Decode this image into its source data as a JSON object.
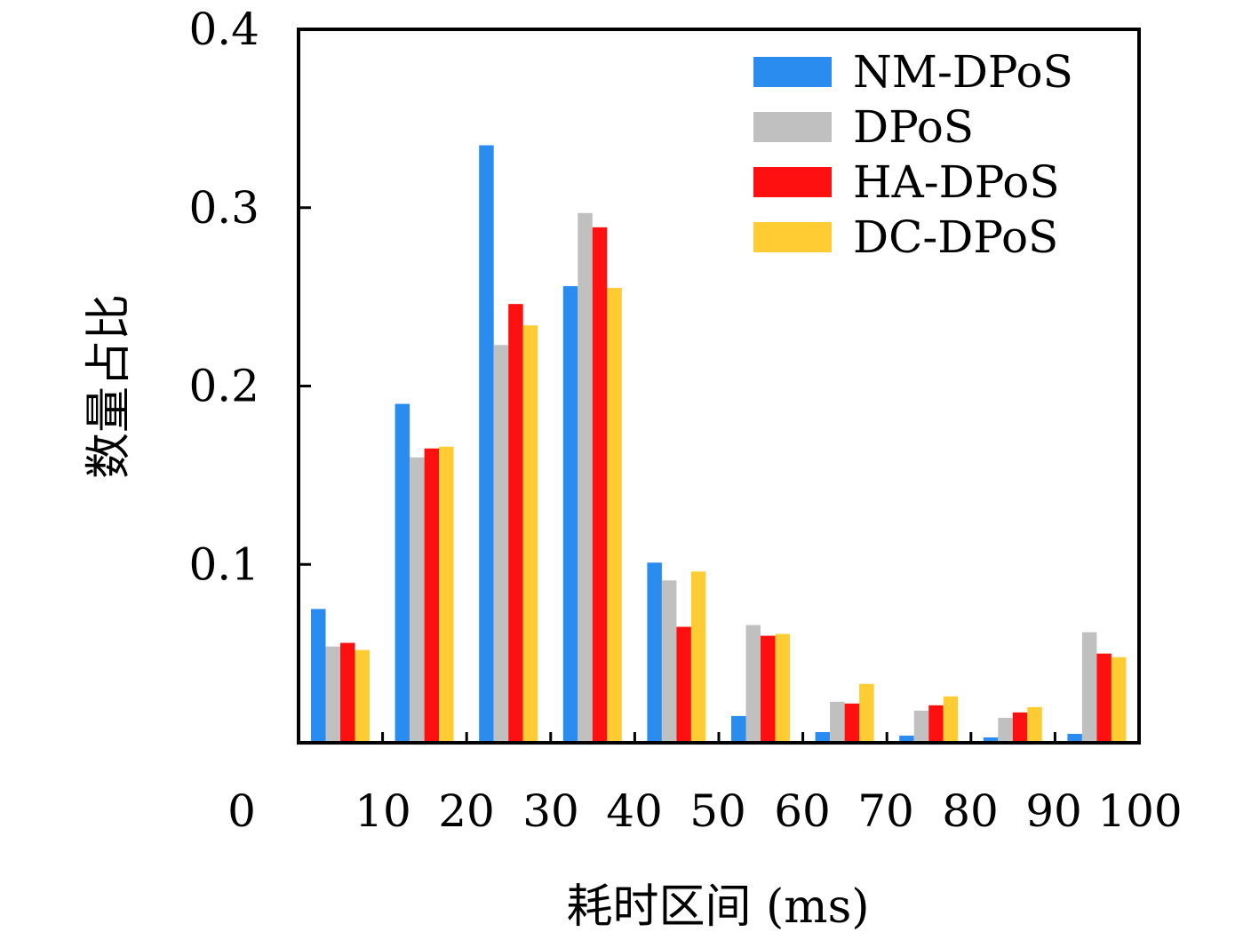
{
  "chart_data": {
    "type": "bar",
    "xlabel": "耗时区间 (ms)",
    "ylabel": "数量占比",
    "x_ticks": [
      "0",
      "10",
      "20",
      "30",
      "40",
      "50",
      "60",
      "70",
      "80",
      "90",
      "100"
    ],
    "y_ticks": [
      "0.1",
      "0.2",
      "0.3",
      "0.4"
    ],
    "ylim": [
      0,
      0.4
    ],
    "xlim": [
      0,
      100
    ],
    "categories": [
      "0-10",
      "10-20",
      "20-30",
      "30-40",
      "40-50",
      "50-60",
      "60-70",
      "70-80",
      "80-90",
      "90-100"
    ],
    "series": [
      {
        "name": "NM-DPoS",
        "color": "#2b8cf0",
        "values": [
          0.075,
          0.19,
          0.335,
          0.256,
          0.101,
          0.015,
          0.006,
          0.004,
          0.003,
          0.005
        ]
      },
      {
        "name": "DPoS",
        "color": "#c0c0c0",
        "values": [
          0.054,
          0.16,
          0.223,
          0.297,
          0.091,
          0.066,
          0.023,
          0.018,
          0.014,
          0.062
        ]
      },
      {
        "name": "HA-DPoS",
        "color": "#ff1010",
        "values": [
          0.056,
          0.165,
          0.246,
          0.289,
          0.065,
          0.06,
          0.022,
          0.021,
          0.017,
          0.05
        ]
      },
      {
        "name": "DC-DPoS",
        "color": "#ffcc33",
        "values": [
          0.052,
          0.166,
          0.234,
          0.255,
          0.096,
          0.061,
          0.033,
          0.026,
          0.02,
          0.048
        ]
      }
    ],
    "legend_position": "top-right",
    "grid": false
  }
}
